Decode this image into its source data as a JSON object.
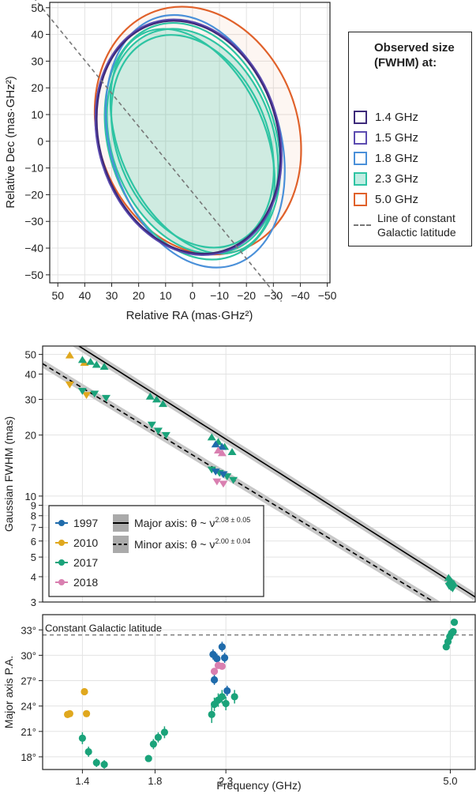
{
  "chart_data": [
    {
      "type": "ellipse",
      "xlabel": "Relative RA (mas·GHz²)",
      "ylabel": "Relative Dec (mas·GHz²)",
      "xlim": [
        53,
        -51
      ],
      "ylim": [
        -53,
        52
      ],
      "xticks": [
        "50",
        "40",
        "30",
        "20",
        "10",
        "0",
        "−10",
        "−20",
        "−30",
        "−40",
        "−50"
      ],
      "yticks": [
        "−50",
        "−40",
        "−30",
        "−20",
        "−10",
        "0",
        "10",
        "20",
        "30",
        "40",
        "50"
      ],
      "grid": true,
      "legend_title": "Observed size (FWHM) at:",
      "legend_position": "right",
      "series": [
        {
          "name": "1.4 GHz",
          "color": "#3d2a7a",
          "fill": false,
          "ellipses": [
            {
              "cx": 1.5,
              "cy": 1.5,
              "rx": 33,
              "ry": 44,
              "rot": 17
            }
          ]
        },
        {
          "name": "1.5 GHz",
          "color": "#5b4bb0",
          "fill": false,
          "ellipses": [
            {
              "cx": 1.5,
              "cy": 1.5,
              "rx": 33.5,
              "ry": 44.5,
              "rot": 17
            }
          ]
        },
        {
          "name": "1.8 GHz",
          "color": "#4a90d9",
          "fill": false,
          "ellipses": [
            {
              "cx": -1,
              "cy": 0,
              "rx": 31.5,
              "ry": 48,
              "rot": 17
            }
          ]
        },
        {
          "name": "2.3 GHz",
          "color": "#2ec4a3",
          "fill": true,
          "ellipses": [
            {
              "cx": 0,
              "cy": 0,
              "rx": 30,
              "ry": 43,
              "rot": 20
            },
            {
              "cx": 0,
              "cy": 0,
              "rx": 28,
              "ry": 41,
              "rot": 22
            },
            {
              "cx": 0,
              "cy": 0,
              "rx": 31,
              "ry": 45,
              "rot": 18
            },
            {
              "cx": 0,
              "cy": 0,
              "rx": 27,
              "ry": 44,
              "rot": 24
            }
          ]
        },
        {
          "name": "5.0 GHz",
          "color": "#e0612a",
          "fill": false,
          "ellipses": [
            {
              "cx": -2,
              "cy": 4,
              "rx": 37,
              "ry": 47,
              "rot": 20
            }
          ]
        }
      ],
      "reference_line": {
        "name": "Line of constant Galactic latitude",
        "color": "#777777",
        "style": "dashed",
        "points": [
          [
            64,
            60
          ],
          [
            -33,
            -60
          ]
        ]
      }
    },
    {
      "type": "scatter",
      "xlabel": "",
      "ylabel": "Gaussian FWHM (mas)",
      "xscale": "log",
      "yscale": "log",
      "xlim": [
        1.22,
        5.45
      ],
      "ylim": [
        3,
        55
      ],
      "yticks": [
        "3",
        "4",
        "5",
        "6",
        "7",
        "8",
        "9",
        "10",
        "20",
        "30",
        "40",
        "50"
      ],
      "grid": true,
      "legend_position": "bottom-left",
      "legend_series": [
        {
          "name": "1997",
          "color": "#1f6bab"
        },
        {
          "name": "2010",
          "color": "#e0a81e"
        },
        {
          "name": "2017",
          "color": "#1aa37a"
        },
        {
          "name": "2018",
          "color": "#d97fb0"
        }
      ],
      "fits": [
        {
          "name": "Major axis: θ ~ ν",
          "exponent": "2.08 ± 0.05",
          "style": "solid",
          "color": "#000000",
          "a": 108,
          "b": 2.08
        },
        {
          "name": "Minor axis: θ ~ ν",
          "exponent": "2.00 ± 0.04",
          "style": "dashed",
          "color": "#000000",
          "a": 67,
          "b": 2.0
        }
      ],
      "points": [
        {
          "series": "2010",
          "marker": "tri-up",
          "x": 1.34,
          "y": 49.5
        },
        {
          "series": "2010",
          "marker": "tri-up",
          "x": 1.41,
          "y": 45.5
        },
        {
          "series": "2017",
          "marker": "tri-up",
          "x": 1.4,
          "y": 47
        },
        {
          "series": "2017",
          "marker": "tri-up",
          "x": 1.44,
          "y": 46
        },
        {
          "series": "2017",
          "marker": "tri-up",
          "x": 1.47,
          "y": 44.5
        },
        {
          "series": "2017",
          "marker": "tri-up",
          "x": 1.51,
          "y": 43.5
        },
        {
          "series": "2010",
          "marker": "tri-down",
          "x": 1.34,
          "y": 35.5
        },
        {
          "series": "2010",
          "marker": "tri-down",
          "x": 1.42,
          "y": 31.5
        },
        {
          "series": "2017",
          "marker": "tri-down",
          "x": 1.4,
          "y": 33
        },
        {
          "series": "2017",
          "marker": "tri-down",
          "x": 1.46,
          "y": 32
        },
        {
          "series": "2017",
          "marker": "tri-down",
          "x": 1.52,
          "y": 30.5
        },
        {
          "series": "2017",
          "marker": "tri-up",
          "x": 1.77,
          "y": 31
        },
        {
          "series": "2017",
          "marker": "tri-up",
          "x": 1.81,
          "y": 30
        },
        {
          "series": "2017",
          "marker": "tri-up",
          "x": 1.85,
          "y": 28.5
        },
        {
          "series": "2017",
          "marker": "tri-down",
          "x": 1.78,
          "y": 22.5
        },
        {
          "series": "2017",
          "marker": "tri-down",
          "x": 1.82,
          "y": 21
        },
        {
          "series": "2017",
          "marker": "tri-down",
          "x": 1.87,
          "y": 20
        },
        {
          "series": "2017",
          "marker": "tri-up",
          "x": 2.19,
          "y": 19.5
        },
        {
          "series": "2017",
          "marker": "tri-up",
          "x": 2.24,
          "y": 18.5
        },
        {
          "series": "2017",
          "marker": "tri-up",
          "x": 2.29,
          "y": 17.5
        },
        {
          "series": "2017",
          "marker": "tri-up",
          "x": 2.35,
          "y": 16.5
        },
        {
          "series": "1997",
          "marker": "tri-up",
          "x": 2.22,
          "y": 18
        },
        {
          "series": "1997",
          "marker": "tri-up",
          "x": 2.27,
          "y": 17.5
        },
        {
          "series": "2018",
          "marker": "tri-up",
          "x": 2.24,
          "y": 16.8
        },
        {
          "series": "2018",
          "marker": "tri-up",
          "x": 2.27,
          "y": 16.3
        },
        {
          "series": "2017",
          "marker": "tri-down",
          "x": 2.19,
          "y": 13.5
        },
        {
          "series": "2017",
          "marker": "tri-down",
          "x": 2.25,
          "y": 13
        },
        {
          "series": "2017",
          "marker": "tri-down",
          "x": 2.31,
          "y": 12.5
        },
        {
          "series": "2017",
          "marker": "tri-down",
          "x": 2.36,
          "y": 12
        },
        {
          "series": "1997",
          "marker": "tri-down",
          "x": 2.22,
          "y": 13.2
        },
        {
          "series": "1997",
          "marker": "tri-down",
          "x": 2.28,
          "y": 12.8
        },
        {
          "series": "2018",
          "marker": "tri-down",
          "x": 2.23,
          "y": 11.8
        },
        {
          "series": "2018",
          "marker": "tri-down",
          "x": 2.28,
          "y": 11.5
        },
        {
          "series": "2017",
          "marker": "tri-up",
          "x": 4.97,
          "y": 3.95
        },
        {
          "series": "2017",
          "marker": "tri-up",
          "x": 5.0,
          "y": 3.85
        },
        {
          "series": "2017",
          "marker": "tri-up",
          "x": 5.03,
          "y": 3.75
        },
        {
          "series": "2017",
          "marker": "tri-up",
          "x": 5.06,
          "y": 3.7
        },
        {
          "series": "2017",
          "marker": "tri-down",
          "x": 4.98,
          "y": 3.6
        },
        {
          "series": "2017",
          "marker": "tri-down",
          "x": 5.01,
          "y": 3.55
        },
        {
          "series": "2017",
          "marker": "tri-down",
          "x": 5.04,
          "y": 3.5
        }
      ]
    },
    {
      "type": "scatter",
      "xlabel": "Frequency (GHz)",
      "ylabel": "Major axis P.A.",
      "xscale": "log",
      "xlim": [
        1.22,
        5.45
      ],
      "ylim": [
        16.5,
        34.8
      ],
      "xticks": [
        "1.4",
        "1.8",
        "2.3",
        "5.0"
      ],
      "xtick_values": [
        1.4,
        1.8,
        2.3,
        5.0
      ],
      "yticks": [
        "18°",
        "21°",
        "24°",
        "27°",
        "30°",
        "33°"
      ],
      "grid": true,
      "reference_line": {
        "name": "Constant Galactic latitude",
        "y": 32.4,
        "style": "dashed",
        "color": "#777777"
      },
      "points": [
        {
          "series": "2010",
          "x": 1.33,
          "y": 23.0,
          "err": 0.3
        },
        {
          "series": "2010",
          "x": 1.34,
          "y": 23.1,
          "err": 0.3
        },
        {
          "series": "2010",
          "x": 1.41,
          "y": 25.7,
          "err": 0.3
        },
        {
          "series": "2010",
          "x": 1.42,
          "y": 23.1,
          "err": 0.3
        },
        {
          "series": "2017",
          "x": 1.4,
          "y": 20.2,
          "err": 0.7
        },
        {
          "series": "2017",
          "x": 1.43,
          "y": 18.6,
          "err": 0.6
        },
        {
          "series": "2017",
          "x": 1.47,
          "y": 17.3,
          "err": 0.5
        },
        {
          "series": "2017",
          "x": 1.51,
          "y": 17.1,
          "err": 0.5
        },
        {
          "series": "2017",
          "x": 1.76,
          "y": 17.8,
          "err": 0.4
        },
        {
          "series": "2017",
          "x": 1.79,
          "y": 19.5,
          "err": 0.6
        },
        {
          "series": "2017",
          "x": 1.82,
          "y": 20.3,
          "err": 0.6
        },
        {
          "series": "2017",
          "x": 1.86,
          "y": 20.9,
          "err": 0.7
        },
        {
          "series": "2017",
          "x": 2.19,
          "y": 23.0,
          "err": 1.0
        },
        {
          "series": "2017",
          "x": 2.21,
          "y": 24.2,
          "err": 0.8
        },
        {
          "series": "2017",
          "x": 2.24,
          "y": 24.7,
          "err": 0.8
        },
        {
          "series": "2017",
          "x": 2.27,
          "y": 25.1,
          "err": 0.8
        },
        {
          "series": "2017",
          "x": 2.3,
          "y": 24.3,
          "err": 0.8
        },
        {
          "series": "2017",
          "x": 2.37,
          "y": 25.1,
          "err": 0.8
        },
        {
          "series": "1997",
          "x": 2.2,
          "y": 30.1,
          "err": 0.6
        },
        {
          "series": "1997",
          "x": 2.21,
          "y": 27.1,
          "err": 0.6
        },
        {
          "series": "1997",
          "x": 2.23,
          "y": 29.6,
          "err": 0.6
        },
        {
          "series": "1997",
          "x": 2.27,
          "y": 31.0,
          "err": 0.6
        },
        {
          "series": "1997",
          "x": 2.29,
          "y": 29.7,
          "err": 0.6
        },
        {
          "series": "1997",
          "x": 2.31,
          "y": 25.8,
          "err": 0.6
        },
        {
          "series": "2018",
          "x": 2.21,
          "y": 28.1,
          "err": 0.4
        },
        {
          "series": "2018",
          "x": 2.24,
          "y": 28.8,
          "err": 0.4
        },
        {
          "series": "2018",
          "x": 2.27,
          "y": 28.7,
          "err": 0.4
        },
        {
          "series": "2017",
          "x": 4.93,
          "y": 31.0,
          "err": 0.3
        },
        {
          "series": "2017",
          "x": 4.96,
          "y": 31.6,
          "err": 0.3
        },
        {
          "series": "2017",
          "x": 4.99,
          "y": 32.2,
          "err": 0.3
        },
        {
          "series": "2017",
          "x": 5.02,
          "y": 32.6,
          "err": 0.3
        },
        {
          "series": "2017",
          "x": 5.05,
          "y": 32.8,
          "err": 0.3
        },
        {
          "series": "2017",
          "x": 5.07,
          "y": 33.9,
          "err": 0.3
        }
      ]
    }
  ]
}
